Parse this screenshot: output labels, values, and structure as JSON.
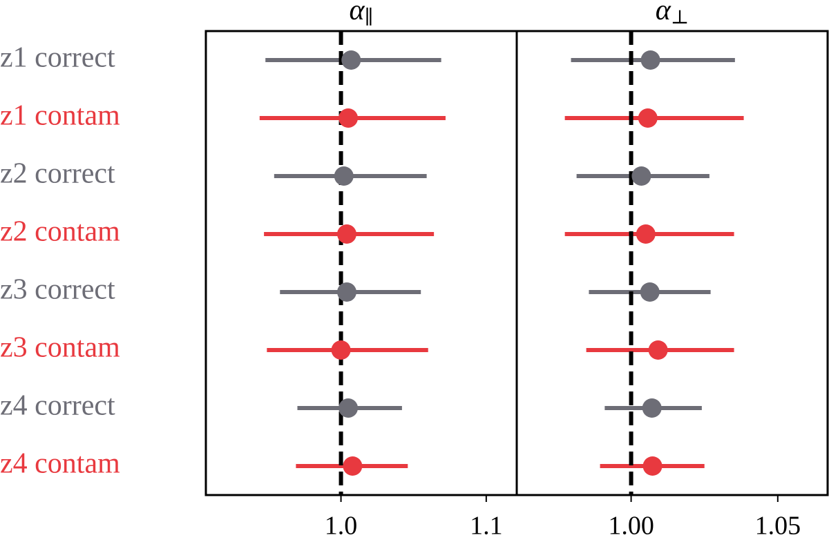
{
  "chart_data": {
    "type": "forest",
    "categories": [
      "z1 correct",
      "z1 contam",
      "z2 correct",
      "z2 contam",
      "z3 correct",
      "z3 contam",
      "z4 correct",
      "z4 contam"
    ],
    "category_colors": [
      "#6d6d76",
      "#e8393f",
      "#6d6d76",
      "#e8393f",
      "#6d6d76",
      "#e8393f",
      "#6d6d76",
      "#e8393f"
    ],
    "reference": 1,
    "panels": [
      {
        "title": "α",
        "title_sub": "∥",
        "xlim": [
          0.907,
          1.121
        ],
        "xticks": [
          {
            "value": 1.0,
            "label": "1.0"
          },
          1.1
        ],
        "values": [
          1.007,
          1.005,
          1.002,
          1.004,
          1.004,
          1.0,
          1.005,
          1.008
        ],
        "lower": [
          0.948,
          0.944,
          0.954,
          0.947,
          0.958,
          0.949,
          0.97,
          0.969
        ],
        "upper": [
          1.069,
          1.072,
          1.059,
          1.064,
          1.055,
          1.06,
          1.042,
          1.046
        ]
      },
      {
        "title": "α",
        "title_sub": "⊥",
        "xlim": [
          0.961,
          1.067
        ],
        "xticks": [
          {
            "value": 1.0,
            "label": "1.00"
          },
          1.05
        ],
        "values": [
          1.0066,
          1.0057,
          1.0035,
          1.005,
          1.0064,
          1.0092,
          1.0071,
          1.0073
        ],
        "lower": [
          0.9795,
          0.9774,
          0.9814,
          0.9774,
          0.9856,
          0.9847,
          0.991,
          0.9894
        ],
        "upper": [
          1.0354,
          1.0384,
          1.0267,
          1.0351,
          1.0271,
          1.0351,
          1.0241,
          1.025
        ]
      }
    ]
  }
}
